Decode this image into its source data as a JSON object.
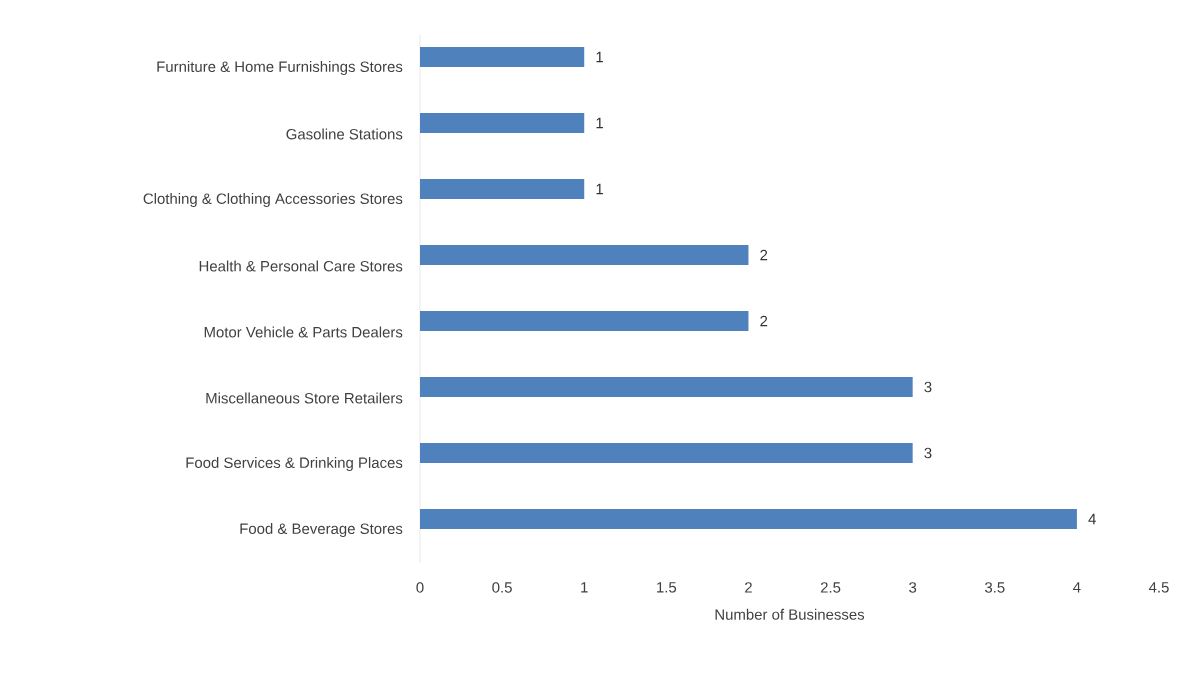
{
  "chart_data": {
    "type": "bar",
    "orientation": "horizontal",
    "xlabel": "Number of Businesses",
    "categories": [
      "Furniture & Home Furnishings Stores",
      "Gasoline Stations",
      "Clothing & Clothing Accessories Stores",
      "Health & Personal Care Stores",
      "Motor Vehicle & Parts Dealers",
      "Miscellaneous Store Retailers",
      "Food Services & Drinking Places",
      "Food & Beverage Stores"
    ],
    "values": [
      1,
      1,
      1,
      2,
      2,
      3,
      3,
      4
    ],
    "color": "#4f81bd",
    "xlim": [
      0,
      4.5
    ],
    "xticks": [
      0,
      0.5,
      1,
      1.5,
      2,
      2.5,
      3,
      3.5,
      4,
      4.5
    ],
    "data_labels": true,
    "grid": false
  }
}
